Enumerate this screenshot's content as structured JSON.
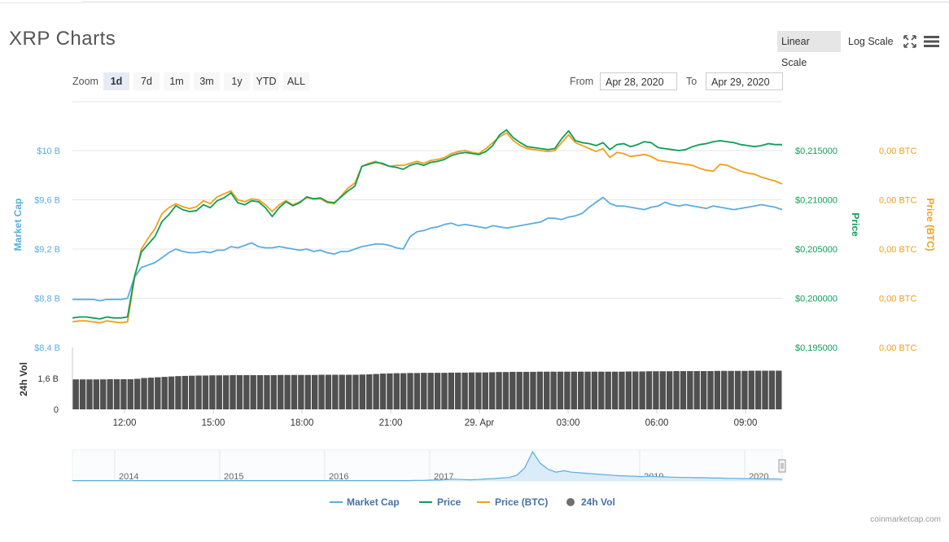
{
  "header": {
    "title": "XRP Charts",
    "linear_scale": "Linear Scale",
    "log_scale": "Log Scale",
    "fullscreen_icon": "fullscreen-icon",
    "menu_icon": "hamburger-menu-icon"
  },
  "toolbar": {
    "zoom_label": "Zoom",
    "zoom_options": [
      "1d",
      "7d",
      "1m",
      "3m",
      "1y",
      "YTD",
      "ALL"
    ],
    "zoom_selected": "1d",
    "from_label": "From",
    "from_value": "Apr 28, 2020",
    "to_label": "To",
    "to_value": "Apr 29, 2020"
  },
  "legend": {
    "market_cap": "Market Cap",
    "price": "Price",
    "price_btc": "Price (BTC)",
    "vol": "24h Vol"
  },
  "credit": "coinmarketcap.com",
  "colors": {
    "market_cap": "#5aade0",
    "price": "#0e9e58",
    "price_btc": "#f0a019",
    "volume": "#505050"
  },
  "chart_data": {
    "type": "line",
    "x_ticks": [
      "12:00",
      "15:00",
      "18:00",
      "21:00",
      "29. Apr",
      "03:00",
      "06:00",
      "09:00"
    ],
    "left_axis": {
      "title": "Market Cap",
      "ticks": [
        "$8,4 B",
        "$8,8 B",
        "$9,2 B",
        "$9,6 B",
        "$10 B"
      ],
      "range": [
        8.4,
        10.0
      ]
    },
    "price_axis": {
      "title": "Price",
      "ticks": [
        "$0,195000",
        "$0,200000",
        "$0,205000",
        "$0,210000",
        "$0,215000"
      ],
      "range": [
        0.195,
        0.215
      ]
    },
    "btc_axis": {
      "title": "Price (BTC)",
      "ticks": [
        "0,00 BTC",
        "0,00 BTC",
        "0,00 BTC",
        "0,00 BTC",
        "0,00 BTC"
      ]
    },
    "volume_axis": {
      "title": "24h Vol",
      "ticks": [
        "0",
        "1,6 B"
      ]
    },
    "series": [
      {
        "name": "Market Cap",
        "color": "#5aade0",
        "values": [
          8.79,
          8.79,
          8.79,
          8.79,
          8.78,
          8.79,
          8.79,
          8.79,
          8.8,
          8.97,
          9.05,
          9.07,
          9.09,
          9.13,
          9.17,
          9.2,
          9.18,
          9.17,
          9.17,
          9.18,
          9.17,
          9.19,
          9.19,
          9.22,
          9.21,
          9.23,
          9.25,
          9.22,
          9.21,
          9.21,
          9.22,
          9.21,
          9.2,
          9.19,
          9.2,
          9.18,
          9.19,
          9.17,
          9.16,
          9.18,
          9.18,
          9.2,
          9.22,
          9.23,
          9.24,
          9.24,
          9.23,
          9.21,
          9.2,
          9.3,
          9.34,
          9.35,
          9.37,
          9.38,
          9.4,
          9.41,
          9.39,
          9.4,
          9.39,
          9.38,
          9.37,
          9.39,
          9.38,
          9.37,
          9.38,
          9.39,
          9.4,
          9.41,
          9.42,
          9.45,
          9.45,
          9.44,
          9.46,
          9.47,
          9.49,
          9.54,
          9.58,
          9.62,
          9.57,
          9.55,
          9.55,
          9.54,
          9.53,
          9.52,
          9.54,
          9.55,
          9.58,
          9.56,
          9.55,
          9.56,
          9.55,
          9.54,
          9.53,
          9.55,
          9.54,
          9.53,
          9.52,
          9.53,
          9.54,
          9.55,
          9.56,
          9.55,
          9.54,
          9.52
        ]
      },
      {
        "name": "Price",
        "color": "#0e9e58",
        "values": [
          0.198,
          0.1981,
          0.1981,
          0.198,
          0.1979,
          0.1981,
          0.198,
          0.198,
          0.1981,
          0.2022,
          0.2047,
          0.2055,
          0.2063,
          0.2078,
          0.2085,
          0.2094,
          0.209,
          0.2088,
          0.2089,
          0.2095,
          0.2092,
          0.2099,
          0.2102,
          0.2107,
          0.2097,
          0.2095,
          0.2099,
          0.2098,
          0.2092,
          0.2083,
          0.2092,
          0.2098,
          0.2094,
          0.2097,
          0.2103,
          0.2101,
          0.2102,
          0.2098,
          0.2097,
          0.2103,
          0.2109,
          0.2114,
          0.2134,
          0.2136,
          0.2138,
          0.2137,
          0.2134,
          0.2133,
          0.2131,
          0.2135,
          0.2137,
          0.2135,
          0.2138,
          0.2139,
          0.2141,
          0.2145,
          0.2147,
          0.2148,
          0.2147,
          0.2146,
          0.2149,
          0.2155,
          0.2166,
          0.2171,
          0.2163,
          0.2158,
          0.2154,
          0.2153,
          0.2152,
          0.2151,
          0.2152,
          0.2162,
          0.217,
          0.216,
          0.2158,
          0.2157,
          0.2155,
          0.2158,
          0.2151,
          0.2156,
          0.2157,
          0.2154,
          0.2156,
          0.2159,
          0.2158,
          0.2153,
          0.2152,
          0.2151,
          0.215,
          0.2151,
          0.2154,
          0.2156,
          0.2157,
          0.2159,
          0.216,
          0.2159,
          0.2158,
          0.2156,
          0.2155,
          0.2154,
          0.2155,
          0.2157,
          0.2156,
          0.2156
        ]
      },
      {
        "name": "Price (BTC)",
        "color": "#f0a019",
        "values": [
          0.1976,
          0.1977,
          0.1977,
          0.1976,
          0.1975,
          0.1977,
          0.1976,
          0.1975,
          0.1976,
          0.202,
          0.205,
          0.2061,
          0.2071,
          0.2086,
          0.2092,
          0.2096,
          0.2093,
          0.2091,
          0.2093,
          0.2099,
          0.2096,
          0.2103,
          0.2106,
          0.2109,
          0.21,
          0.2098,
          0.2101,
          0.21,
          0.2095,
          0.2088,
          0.2095,
          0.2099,
          0.2095,
          0.2098,
          0.2102,
          0.2101,
          0.2101,
          0.2097,
          0.2096,
          0.2104,
          0.2112,
          0.2117,
          0.2134,
          0.2137,
          0.2139,
          0.2136,
          0.2134,
          0.2135,
          0.2135,
          0.2137,
          0.2139,
          0.2137,
          0.214,
          0.2141,
          0.2143,
          0.2147,
          0.2149,
          0.215,
          0.2148,
          0.2147,
          0.2152,
          0.2158,
          0.2164,
          0.2168,
          0.216,
          0.2155,
          0.2152,
          0.2151,
          0.215,
          0.2149,
          0.215,
          0.2158,
          0.2166,
          0.2158,
          0.2155,
          0.2152,
          0.2149,
          0.2152,
          0.2143,
          0.2148,
          0.2147,
          0.2144,
          0.2145,
          0.2146,
          0.2144,
          0.214,
          0.2139,
          0.2138,
          0.2137,
          0.2136,
          0.2135,
          0.2132,
          0.213,
          0.2129,
          0.2136,
          0.2135,
          0.2132,
          0.2129,
          0.2127,
          0.2126,
          0.2123,
          0.2121,
          0.2119,
          0.2116
        ]
      },
      {
        "name": "24h Vol",
        "color": "#505050",
        "values": [
          1.55,
          1.55,
          1.55,
          1.55,
          1.55,
          1.56,
          1.56,
          1.56,
          1.56,
          1.58,
          1.62,
          1.64,
          1.66,
          1.68,
          1.7,
          1.72,
          1.73,
          1.74,
          1.75,
          1.75,
          1.76,
          1.76,
          1.76,
          1.77,
          1.77,
          1.77,
          1.77,
          1.77,
          1.77,
          1.77,
          1.78,
          1.78,
          1.78,
          1.78,
          1.78,
          1.78,
          1.79,
          1.79,
          1.79,
          1.79,
          1.79,
          1.79,
          1.8,
          1.81,
          1.83,
          1.85,
          1.86,
          1.87,
          1.87,
          1.88,
          1.88,
          1.89,
          1.89,
          1.89,
          1.89,
          1.9,
          1.9,
          1.9,
          1.91,
          1.91,
          1.91,
          1.92,
          1.93,
          1.93,
          1.94,
          1.94,
          1.94,
          1.94,
          1.95,
          1.95,
          1.95,
          1.95,
          1.95,
          1.95,
          1.95,
          1.95,
          1.95,
          1.95,
          1.95,
          1.95,
          1.95,
          1.96,
          1.96,
          1.96,
          1.97,
          1.97,
          1.97,
          1.97,
          1.98,
          1.98,
          1.98,
          1.98,
          1.98,
          1.98,
          1.99,
          1.99,
          1.99,
          1.99,
          1.99,
          2.0,
          2.0,
          2.0,
          2.0,
          2.0
        ]
      }
    ],
    "navigator": {
      "x_labels": [
        "2014",
        "2015",
        "2016",
        "2017",
        "2018",
        "2019",
        "2020"
      ],
      "values": [
        0.01,
        0.01,
        0.01,
        0.01,
        0.01,
        0.01,
        0.01,
        0.01,
        0.01,
        0.01,
        0.01,
        0.01,
        0.01,
        0.01,
        0.01,
        0.01,
        0.01,
        0.01,
        0.01,
        0.01,
        0.01,
        0.01,
        0.01,
        0.01,
        0.01,
        0.01,
        0.01,
        0.01,
        0.01,
        0.01,
        0.01,
        0.01,
        0.01,
        0.01,
        0.01,
        0.01,
        0.01,
        0.01,
        0.01,
        0.01,
        0.01,
        0.01,
        0.01,
        0.01,
        0.02,
        0.02,
        0.03,
        0.03,
        0.05,
        0.06,
        0.05,
        0.04,
        0.05,
        0.07,
        0.08,
        0.1,
        0.12,
        0.2,
        0.45,
        1.0,
        0.6,
        0.4,
        0.3,
        0.35,
        0.3,
        0.28,
        0.26,
        0.24,
        0.22,
        0.2,
        0.18,
        0.17,
        0.16,
        0.15,
        0.16,
        0.15,
        0.14,
        0.13,
        0.12,
        0.12,
        0.11,
        0.11,
        0.1,
        0.1,
        0.09,
        0.09,
        0.08,
        0.08,
        0.07,
        0.07,
        0.07,
        0.06
      ]
    }
  }
}
